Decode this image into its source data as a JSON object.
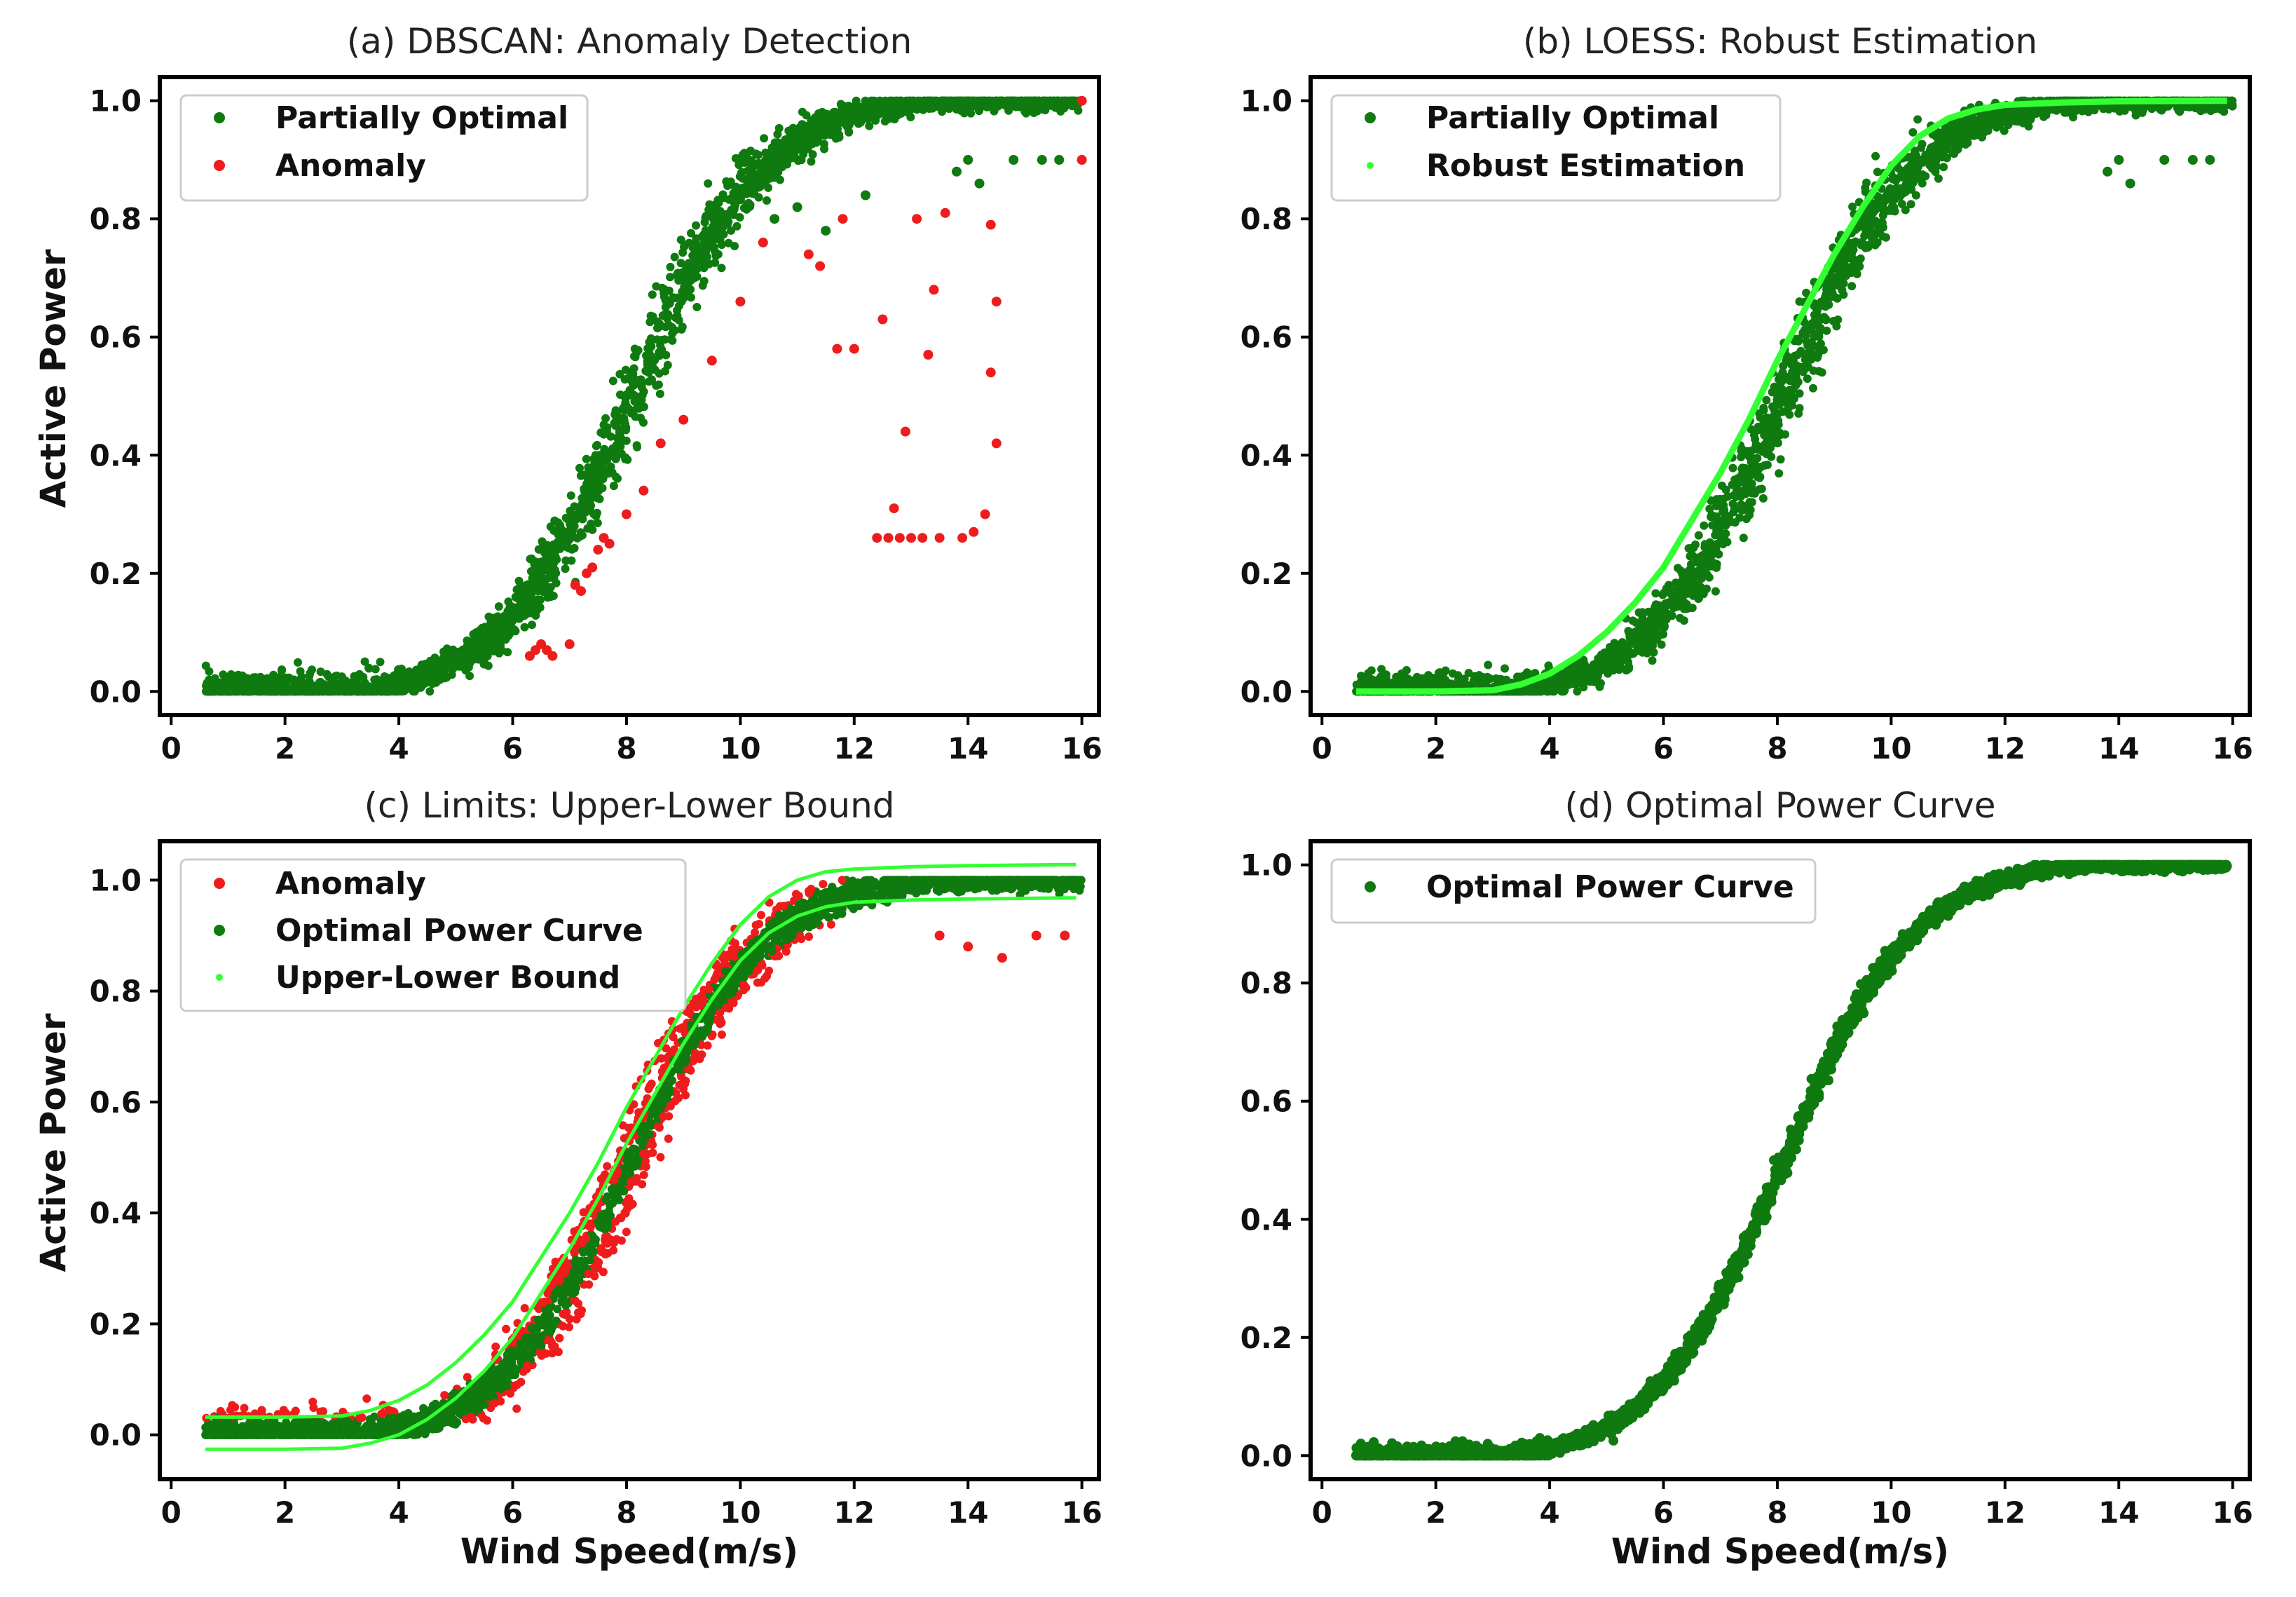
{
  "figure": {
    "xlabel": "Wind Speed(m/s)",
    "ylabel": "Active Power"
  },
  "colors": {
    "partially_optimal": "#0f7a0f",
    "anomaly": "#ee1c1c",
    "robust_estimation": "#33ff33",
    "bound": "#33ff33",
    "optimal": "#0f7a0f"
  },
  "chart_data": [
    {
      "type": "scatter",
      "title": "(a) DBSCAN: Anomaly Detection",
      "xlabel": "",
      "ylabel": "Active Power",
      "xlim": [
        -0.2,
        16.3
      ],
      "ylim": [
        -0.04,
        1.04
      ],
      "xticks": [
        0,
        2,
        4,
        6,
        8,
        10,
        12,
        14,
        16
      ],
      "yticks": [
        0.0,
        0.2,
        0.4,
        0.6,
        0.8,
        1.0
      ],
      "legend": {
        "position": "upper-left",
        "entries": [
          "Partially Optimal",
          "Anomaly"
        ]
      },
      "series": [
        {
          "name": "Partially Optimal",
          "kind": "scatter",
          "color": "#0f7a0f",
          "description": "dense cloud following sigmoid power curve, x 0.6-16"
        },
        {
          "name": "Anomaly",
          "kind": "scatter",
          "color": "#ee1c1c",
          "x": [
            6.3,
            6.4,
            6.5,
            6.6,
            6.7,
            7.0,
            7.1,
            7.2,
            7.3,
            7.4,
            7.5,
            7.6,
            7.7,
            8.0,
            8.3,
            8.6,
            9.0,
            9.5,
            10.0,
            10.4,
            11.2,
            11.4,
            11.7,
            11.8,
            12.0,
            12.4,
            12.5,
            12.6,
            12.7,
            12.8,
            12.9,
            13.0,
            13.1,
            13.2,
            13.3,
            13.4,
            13.5,
            13.6,
            13.9,
            14.1,
            14.3,
            14.4,
            14.4,
            14.5,
            14.5,
            16.0,
            16.0
          ],
          "y": [
            0.06,
            0.07,
            0.08,
            0.07,
            0.06,
            0.08,
            0.18,
            0.17,
            0.2,
            0.21,
            0.24,
            0.26,
            0.25,
            0.3,
            0.34,
            0.42,
            0.46,
            0.56,
            0.66,
            0.76,
            0.74,
            0.72,
            0.58,
            0.8,
            0.58,
            0.26,
            0.63,
            0.26,
            0.31,
            0.26,
            0.44,
            0.26,
            0.8,
            0.26,
            0.57,
            0.68,
            0.26,
            0.81,
            0.26,
            0.27,
            0.3,
            0.79,
            0.54,
            0.42,
            0.66,
            0.9,
            1.0
          ]
        }
      ]
    },
    {
      "type": "scatter",
      "title": "(b) LOESS: Robust Estimation",
      "xlabel": "",
      "ylabel": "",
      "xlim": [
        -0.2,
        16.3
      ],
      "ylim": [
        -0.04,
        1.04
      ],
      "xticks": [
        0,
        2,
        4,
        6,
        8,
        10,
        12,
        14,
        16
      ],
      "yticks": [
        0.0,
        0.2,
        0.4,
        0.6,
        0.8,
        1.0
      ],
      "legend": {
        "position": "upper-left",
        "entries": [
          "Partially Optimal",
          "Robust Estimation"
        ]
      },
      "series": [
        {
          "name": "Partially Optimal",
          "kind": "scatter",
          "color": "#0f7a0f",
          "description": "dense cloud following sigmoid power curve, x 0.6-16"
        },
        {
          "name": "Robust Estimation",
          "kind": "line",
          "color": "#33ff33",
          "x": [
            0.6,
            2.0,
            3.0,
            3.5,
            4.0,
            4.5,
            5.0,
            5.5,
            6.0,
            6.5,
            7.0,
            7.5,
            8.0,
            8.5,
            9.0,
            9.5,
            10.0,
            10.5,
            11.0,
            11.5,
            12.0,
            13.0,
            14.0,
            15.9
          ],
          "y": [
            0.0,
            0.0,
            0.002,
            0.012,
            0.03,
            0.06,
            0.1,
            0.15,
            0.21,
            0.29,
            0.37,
            0.46,
            0.56,
            0.65,
            0.74,
            0.82,
            0.89,
            0.94,
            0.97,
            0.985,
            0.993,
            0.997,
            0.999,
            1.0
          ]
        }
      ]
    },
    {
      "type": "scatter",
      "title": "(c) Limits: Upper-Lower Bound",
      "xlabel": "Wind Speed(m/s)",
      "ylabel": "Active Power",
      "xlim": [
        -0.2,
        16.3
      ],
      "ylim": [
        -0.08,
        1.07
      ],
      "xticks": [
        0,
        2,
        4,
        6,
        8,
        10,
        12,
        14,
        16
      ],
      "yticks": [
        0.0,
        0.2,
        0.4,
        0.6,
        0.8,
        1.0
      ],
      "legend": {
        "position": "upper-left",
        "entries": [
          "Anomaly",
          "Optimal Power Curve",
          "Upper-Lower Bound"
        ]
      },
      "series": [
        {
          "name": "Anomaly",
          "kind": "scatter",
          "color": "#ee1c1c",
          "description": "points outside the bounds around the curve"
        },
        {
          "name": "Optimal Power Curve",
          "kind": "scatter",
          "color": "#0f7a0f",
          "description": "points within bounds"
        },
        {
          "name": "Upper-Lower Bound",
          "kind": "line",
          "color": "#33ff33",
          "x": [
            0.6,
            2.0,
            3.0,
            3.5,
            4.0,
            4.5,
            5.0,
            5.5,
            6.0,
            6.5,
            7.0,
            7.5,
            8.0,
            8.5,
            9.0,
            9.5,
            10.0,
            10.5,
            11.0,
            11.5,
            12.0,
            13.0,
            14.0,
            15.9
          ],
          "upper": [
            0.032,
            0.032,
            0.034,
            0.044,
            0.062,
            0.09,
            0.13,
            0.18,
            0.24,
            0.32,
            0.4,
            0.49,
            0.59,
            0.68,
            0.77,
            0.85,
            0.92,
            0.97,
            1.0,
            1.015,
            1.02,
            1.024,
            1.026,
            1.028
          ],
          "lower": [
            -0.026,
            -0.026,
            -0.024,
            -0.015,
            0.0,
            0.028,
            0.066,
            0.115,
            0.175,
            0.255,
            0.335,
            0.425,
            0.525,
            0.615,
            0.705,
            0.785,
            0.855,
            0.905,
            0.935,
            0.952,
            0.96,
            0.964,
            0.966,
            0.968
          ]
        }
      ]
    },
    {
      "type": "scatter",
      "title": "(d) Optimal Power Curve",
      "xlabel": "Wind Speed(m/s)",
      "ylabel": "",
      "xlim": [
        -0.2,
        16.3
      ],
      "ylim": [
        -0.04,
        1.04
      ],
      "xticks": [
        0,
        2,
        4,
        6,
        8,
        10,
        12,
        14,
        16
      ],
      "yticks": [
        0.0,
        0.2,
        0.4,
        0.6,
        0.8,
        1.0
      ],
      "legend": {
        "position": "upper-left",
        "entries": [
          "Optimal Power Curve"
        ]
      },
      "series": [
        {
          "name": "Optimal Power Curve",
          "kind": "scatter",
          "color": "#0f7a0f",
          "description": "tight band around sigmoid power curve, x 0.6-16"
        }
      ]
    }
  ]
}
